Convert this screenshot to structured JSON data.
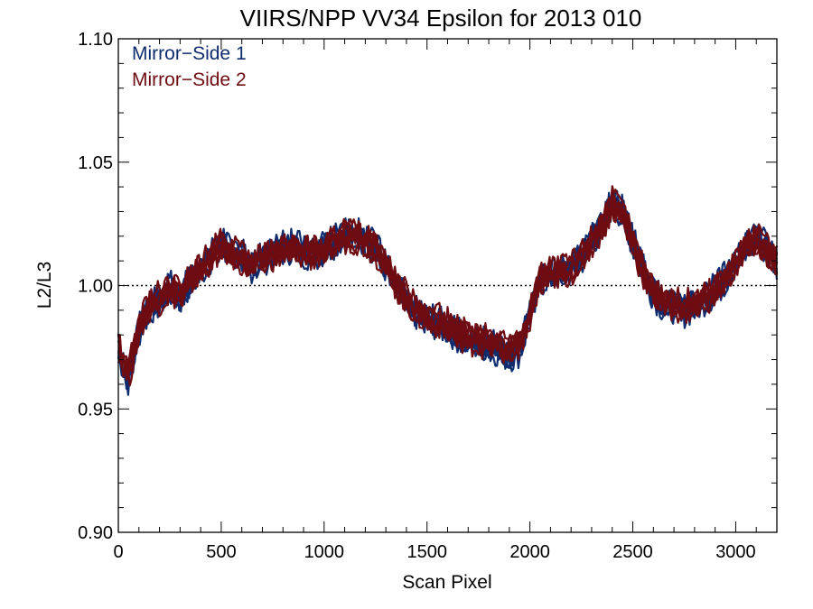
{
  "chart_data": {
    "type": "line",
    "title": "VIIRS/NPP VV34 Epsilon for 2013 010",
    "xlabel": "Scan Pixel",
    "ylabel": "L2/L3",
    "xlim": [
      0,
      3200
    ],
    "ylim": [
      0.9,
      1.1
    ],
    "xticks": [
      "0",
      "500",
      "1000",
      "1500",
      "2000",
      "2500",
      "3000"
    ],
    "yticks": [
      "0.90",
      "0.95",
      "1.00",
      "1.05",
      "1.10"
    ],
    "reference_line": {
      "y": 1.0,
      "style": "dotted"
    },
    "legend": {
      "position": "top-left"
    },
    "x": [
      0,
      50,
      100,
      150,
      200,
      250,
      300,
      350,
      400,
      450,
      500,
      550,
      600,
      650,
      700,
      750,
      800,
      850,
      900,
      950,
      1000,
      1050,
      1100,
      1150,
      1200,
      1250,
      1300,
      1350,
      1400,
      1450,
      1500,
      1550,
      1600,
      1650,
      1700,
      1750,
      1800,
      1850,
      1900,
      1950,
      2000,
      2050,
      2100,
      2150,
      2200,
      2250,
      2300,
      2350,
      2400,
      2450,
      2500,
      2550,
      2600,
      2650,
      2700,
      2750,
      2800,
      2850,
      2900,
      2950,
      3000,
      3050,
      3100,
      3150,
      3200
    ],
    "series": [
      {
        "name": "Mirror−Side 1",
        "color": "#0f2d6e",
        "values": [
          0.974,
          0.962,
          0.982,
          0.991,
          0.994,
          0.999,
          0.995,
          1.002,
          1.006,
          1.012,
          1.017,
          1.014,
          1.012,
          1.008,
          1.011,
          1.013,
          1.015,
          1.016,
          1.014,
          1.013,
          1.015,
          1.018,
          1.021,
          1.021,
          1.019,
          1.015,
          1.008,
          1.0,
          0.994,
          0.989,
          0.986,
          0.985,
          0.983,
          0.98,
          0.978,
          0.977,
          0.976,
          0.974,
          0.972,
          0.974,
          0.988,
          1.002,
          1.006,
          1.005,
          1.007,
          1.011,
          1.018,
          1.025,
          1.034,
          1.03,
          1.018,
          1.006,
          0.997,
          0.992,
          0.992,
          0.99,
          0.992,
          0.995,
          0.998,
          1.003,
          1.01,
          1.016,
          1.02,
          1.015,
          1.009
        ]
      },
      {
        "name": "Mirror−Side 2",
        "color": "#6e0c12",
        "values": [
          0.976,
          0.964,
          0.983,
          0.992,
          0.995,
          0.999,
          0.996,
          1.003,
          1.006,
          1.012,
          1.016,
          1.014,
          1.011,
          1.008,
          1.011,
          1.013,
          1.014,
          1.015,
          1.014,
          1.013,
          1.014,
          1.018,
          1.02,
          1.02,
          1.018,
          1.015,
          1.009,
          1.001,
          0.995,
          0.99,
          0.987,
          0.986,
          0.984,
          0.981,
          0.979,
          0.978,
          0.977,
          0.976,
          0.974,
          0.976,
          0.988,
          1.002,
          1.006,
          1.005,
          1.007,
          1.011,
          1.018,
          1.024,
          1.033,
          1.029,
          1.017,
          1.006,
          0.998,
          0.993,
          0.993,
          0.991,
          0.993,
          0.995,
          0.998,
          1.003,
          1.009,
          1.015,
          1.019,
          1.014,
          1.009
        ]
      }
    ]
  }
}
